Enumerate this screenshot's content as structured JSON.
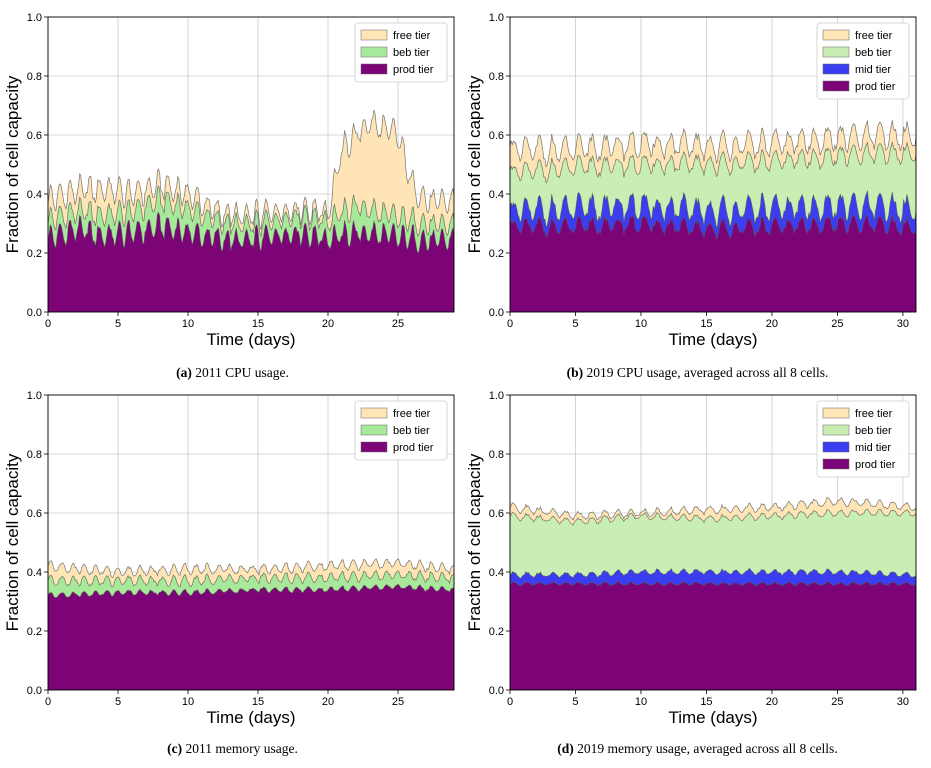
{
  "colors": {
    "free": "#ffe4b5",
    "beb_2011": "#a8e89a",
    "beb_2019": "#c8eeb3",
    "mid": "#3a3ef0",
    "prod": "#7c0477",
    "edge": "#555555",
    "grid": "#cccccc"
  },
  "chart_data": [
    {
      "type": "area",
      "id": "a",
      "stacked": true,
      "caption_label": "(a)",
      "caption_text": "2011 CPU usage.",
      "xlabel": "Time (days)",
      "ylabel": "Fraction of cell capacity",
      "xlim": [
        0,
        29
      ],
      "ylim": [
        0,
        1
      ],
      "xticks": [
        0,
        5,
        10,
        15,
        20,
        25
      ],
      "yticks": [
        "0.0",
        "0.2",
        "0.4",
        "0.6",
        "0.8",
        "1.0"
      ],
      "grid": true,
      "legend_position": "top-right",
      "legend": [
        {
          "label": "free tier",
          "color": "free"
        },
        {
          "label": "beb tier",
          "color": "beb_2011"
        },
        {
          "label": "prod tier",
          "color": "prod"
        }
      ],
      "layers_bottom_to_top": [
        {
          "name": "prod tier",
          "color": "prod",
          "x": [
            0,
            2,
            4,
            6,
            8,
            10,
            12,
            14,
            16,
            18,
            20,
            22,
            24,
            26,
            28,
            29
          ],
          "cumulative_top": [
            0.25,
            0.28,
            0.26,
            0.27,
            0.29,
            0.27,
            0.25,
            0.24,
            0.26,
            0.27,
            0.25,
            0.27,
            0.26,
            0.25,
            0.24,
            0.25
          ],
          "period_days": 0.7,
          "amplitude": 0.035
        },
        {
          "name": "beb tier",
          "color": "beb_2011",
          "x": [
            0,
            2,
            4,
            6,
            8,
            10,
            12,
            14,
            16,
            18,
            20,
            22,
            24,
            26,
            28,
            29
          ],
          "cumulative_top": [
            0.31,
            0.34,
            0.33,
            0.34,
            0.38,
            0.35,
            0.31,
            0.29,
            0.31,
            0.33,
            0.31,
            0.36,
            0.33,
            0.31,
            0.29,
            0.3
          ],
          "period_days": 0.7,
          "amplitude": 0.035
        },
        {
          "name": "free tier",
          "color": "free",
          "x": [
            0,
            2,
            4,
            6,
            8,
            10,
            12,
            14,
            16,
            18,
            20,
            21,
            22,
            23,
            24,
            25,
            26,
            27,
            28,
            29
          ],
          "cumulative_top": [
            0.38,
            0.41,
            0.42,
            0.4,
            0.43,
            0.4,
            0.34,
            0.32,
            0.34,
            0.35,
            0.34,
            0.55,
            0.6,
            0.64,
            0.62,
            0.6,
            0.43,
            0.38,
            0.37,
            0.38
          ],
          "period_days": 0.7,
          "amplitude": 0.04
        }
      ]
    },
    {
      "type": "area",
      "id": "b",
      "stacked": true,
      "caption_label": "(b)",
      "caption_text": "2019 CPU usage, averaged across all 8 cells.",
      "xlabel": "Time (days)",
      "ylabel": "Fraction of cell capacity",
      "xlim": [
        0,
        31
      ],
      "ylim": [
        0,
        1
      ],
      "xticks": [
        0,
        5,
        10,
        15,
        20,
        25,
        30
      ],
      "yticks": [
        "0.0",
        "0.2",
        "0.4",
        "0.6",
        "0.8",
        "1.0"
      ],
      "grid": true,
      "legend_position": "top-right",
      "legend": [
        {
          "label": "free tier",
          "color": "free"
        },
        {
          "label": "beb tier",
          "color": "beb_2019"
        },
        {
          "label": "mid tier",
          "color": "mid"
        },
        {
          "label": "prod tier",
          "color": "prod"
        }
      ],
      "layers_bottom_to_top": [
        {
          "name": "prod tier",
          "color": "prod",
          "x": [
            0,
            5,
            10,
            15,
            20,
            25,
            31
          ],
          "cumulative_top": [
            0.29,
            0.29,
            0.3,
            0.28,
            0.29,
            0.3,
            0.29
          ],
          "period_days": 1.0,
          "amplitude": 0.025
        },
        {
          "name": "mid tier",
          "color": "mid",
          "x": [
            0,
            5,
            10,
            15,
            20,
            25,
            31
          ],
          "cumulative_top": [
            0.34,
            0.35,
            0.36,
            0.34,
            0.35,
            0.36,
            0.35
          ],
          "period_days": 1.0,
          "amplitude": 0.04
        },
        {
          "name": "beb tier",
          "color": "beb_2019",
          "x": [
            0,
            5,
            10,
            15,
            20,
            25,
            31
          ],
          "cumulative_top": [
            0.47,
            0.49,
            0.5,
            0.5,
            0.51,
            0.53,
            0.54
          ],
          "period_days": 1.0,
          "amplitude": 0.03
        },
        {
          "name": "free tier",
          "color": "free",
          "x": [
            0,
            5,
            10,
            15,
            20,
            25,
            31
          ],
          "cumulative_top": [
            0.55,
            0.55,
            0.57,
            0.56,
            0.57,
            0.59,
            0.6
          ],
          "period_days": 1.0,
          "amplitude": 0.04
        }
      ]
    },
    {
      "type": "area",
      "id": "c",
      "stacked": true,
      "caption_label": "(c)",
      "caption_text": "2011 memory usage.",
      "xlabel": "Time (days)",
      "ylabel": "Fraction of cell capacity",
      "xlim": [
        0,
        29
      ],
      "ylim": [
        0,
        1
      ],
      "xticks": [
        0,
        5,
        10,
        15,
        20,
        25
      ],
      "yticks": [
        "0.0",
        "0.2",
        "0.4",
        "0.6",
        "0.8",
        "1.0"
      ],
      "grid": true,
      "legend_position": "top-right",
      "legend": [
        {
          "label": "free tier",
          "color": "free"
        },
        {
          "label": "beb tier",
          "color": "beb_2011"
        },
        {
          "label": "prod tier",
          "color": "prod"
        }
      ],
      "layers_bottom_to_top": [
        {
          "name": "prod tier",
          "color": "prod",
          "x": [
            0,
            5,
            10,
            15,
            20,
            25,
            29
          ],
          "cumulative_top": [
            0.32,
            0.33,
            0.33,
            0.34,
            0.34,
            0.35,
            0.34
          ],
          "period_days": 0.8,
          "amplitude": 0.008
        },
        {
          "name": "beb tier",
          "color": "beb_2011",
          "x": [
            0,
            5,
            10,
            15,
            20,
            25,
            29
          ],
          "cumulative_top": [
            0.37,
            0.37,
            0.37,
            0.38,
            0.38,
            0.39,
            0.38
          ],
          "period_days": 0.8,
          "amplitude": 0.015
        },
        {
          "name": "free tier",
          "color": "free",
          "x": [
            0,
            5,
            10,
            15,
            20,
            25,
            29
          ],
          "cumulative_top": [
            0.42,
            0.4,
            0.41,
            0.41,
            0.42,
            0.43,
            0.41
          ],
          "period_days": 0.8,
          "amplitude": 0.015
        }
      ]
    },
    {
      "type": "area",
      "id": "d",
      "stacked": true,
      "caption_label": "(d)",
      "caption_text": "2019 memory usage, averaged across all 8 cells.",
      "xlabel": "Time (days)",
      "ylabel": "Fraction of cell capacity",
      "xlim": [
        0,
        31
      ],
      "ylim": [
        0,
        1
      ],
      "xticks": [
        0,
        5,
        10,
        15,
        20,
        25,
        30
      ],
      "yticks": [
        "0.0",
        "0.2",
        "0.4",
        "0.6",
        "0.8",
        "1.0"
      ],
      "grid": true,
      "legend_position": "top-right",
      "legend": [
        {
          "label": "free tier",
          "color": "free"
        },
        {
          "label": "beb tier",
          "color": "beb_2019"
        },
        {
          "label": "mid tier",
          "color": "mid"
        },
        {
          "label": "prod tier",
          "color": "prod"
        }
      ],
      "layers_bottom_to_top": [
        {
          "name": "prod tier",
          "color": "prod",
          "x": [
            0,
            5,
            10,
            15,
            20,
            25,
            31
          ],
          "cumulative_top": [
            0.36,
            0.36,
            0.36,
            0.36,
            0.36,
            0.36,
            0.36
          ],
          "period_days": 1.0,
          "amplitude": 0.005
        },
        {
          "name": "mid tier",
          "color": "mid",
          "x": [
            0,
            5,
            10,
            15,
            20,
            25,
            31
          ],
          "cumulative_top": [
            0.39,
            0.39,
            0.4,
            0.4,
            0.4,
            0.4,
            0.39
          ],
          "period_days": 1.0,
          "amplitude": 0.008
        },
        {
          "name": "beb tier",
          "color": "beb_2019",
          "x": [
            0,
            5,
            10,
            15,
            20,
            25,
            31
          ],
          "cumulative_top": [
            0.59,
            0.57,
            0.59,
            0.58,
            0.59,
            0.6,
            0.6
          ],
          "period_days": 1.0,
          "amplitude": 0.01
        },
        {
          "name": "free tier",
          "color": "free",
          "x": [
            0,
            5,
            10,
            15,
            20,
            25,
            31
          ],
          "cumulative_top": [
            0.62,
            0.59,
            0.6,
            0.61,
            0.62,
            0.64,
            0.62
          ],
          "period_days": 1.0,
          "amplitude": 0.012
        }
      ]
    }
  ]
}
